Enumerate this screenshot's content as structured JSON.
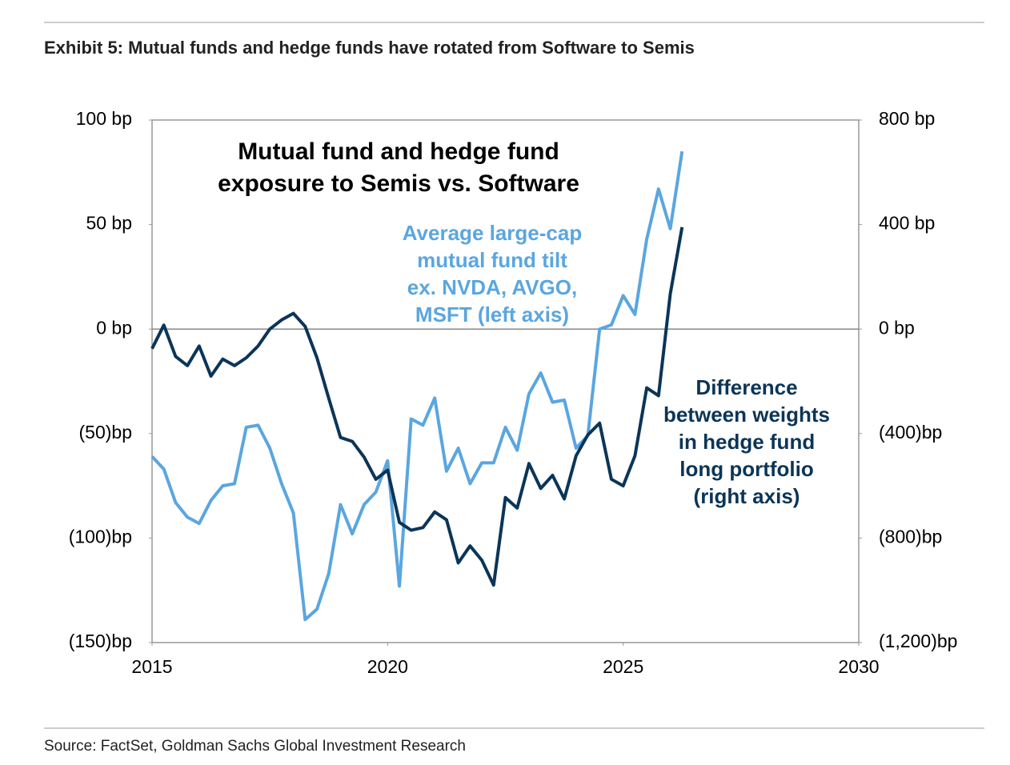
{
  "chart_data": {
    "type": "line",
    "title": "Exhibit 5: Mutual funds and hedge funds have rotated from Software to Semis",
    "chart_title": [
      "Mutual fund and hedge fund",
      "exposure to Semis vs. Software"
    ],
    "source": "Source: FactSet, Goldman Sachs Global Investment Research",
    "x": [
      2015,
      2015.25,
      2015.5,
      2015.75,
      2016,
      2016.25,
      2016.5,
      2016.75,
      2017,
      2017.25,
      2017.5,
      2017.75,
      2018,
      2018.25,
      2018.5,
      2018.75,
      2019,
      2019.25,
      2019.5,
      2019.75,
      2020,
      2020.25,
      2020.5,
      2020.75,
      2021,
      2021.25,
      2021.5,
      2021.75,
      2022,
      2022.25,
      2022.5,
      2022.75,
      2023,
      2023.25,
      2023.5,
      2023.75,
      2024,
      2024.25,
      2024.5,
      2024.75,
      2025,
      2025.25,
      2025.5,
      2025.75,
      2026,
      2026.25
    ],
    "xlim": [
      2015,
      2030
    ],
    "xticks": [
      2015,
      2020,
      2025,
      2030
    ],
    "ylim": [
      -150,
      100
    ],
    "yticks": [
      {
        "value": 100,
        "label": "100 bp"
      },
      {
        "value": 50,
        "label": "50 bp"
      },
      {
        "value": 0,
        "label": "0 bp"
      },
      {
        "value": -50,
        "label": "(50)bp"
      },
      {
        "value": -100,
        "label": "(100)bp"
      },
      {
        "value": -150,
        "label": "(150)bp"
      }
    ],
    "y2lim": [
      -1200,
      800
    ],
    "y2ticks": [
      {
        "value": 800,
        "label": "800 bp"
      },
      {
        "value": 400,
        "label": "400 bp"
      },
      {
        "value": 0,
        "label": "0 bp"
      },
      {
        "value": -400,
        "label": "(400)bp"
      },
      {
        "value": -800,
        "label": "(800)bp"
      },
      {
        "value": -1200,
        "label": "(1,200)bp"
      }
    ],
    "series": [
      {
        "color": "#5aa6e0",
        "axis": "y",
        "values": [
          -61,
          -67,
          -83,
          -90,
          -93,
          -82,
          -75,
          -74,
          -47,
          -46,
          -57,
          -74,
          -88,
          -139,
          -134,
          -117,
          -84,
          -98,
          -84,
          -78,
          -63,
          -123,
          -43,
          -46,
          -33,
          -68,
          -57,
          -74,
          -64,
          -64,
          -47,
          -58,
          -31,
          -21,
          -35,
          -34,
          -57,
          -51,
          0,
          2,
          16,
          7,
          43,
          67,
          48,
          85
        ]
      },
      {
        "color": "#0b3558",
        "axis": "y2",
        "values": [
          -75,
          15,
          -105,
          -140,
          -65,
          -180,
          -115,
          -140,
          -110,
          -65,
          0,
          35,
          60,
          10,
          -110,
          -265,
          -415,
          -430,
          -490,
          -575,
          -540,
          -740,
          -770,
          -760,
          -700,
          -730,
          -895,
          -830,
          -885,
          -980,
          -645,
          -685,
          -515,
          -610,
          -560,
          -650,
          -485,
          -405,
          -360,
          -575,
          -600,
          -485,
          -225,
          -255,
          135,
          390
        ]
      }
    ],
    "annotations": [
      {
        "color": "#5aa6e0",
        "text": [
          "Average large-cap",
          "mutual fund tilt",
          "ex. NVDA, AVGO,",
          "MSFT (left axis)"
        ]
      },
      {
        "color": "#0b3558",
        "text": [
          "Difference",
          "between weights",
          "in hedge fund",
          "long portfolio",
          "(right axis)"
        ]
      }
    ]
  }
}
